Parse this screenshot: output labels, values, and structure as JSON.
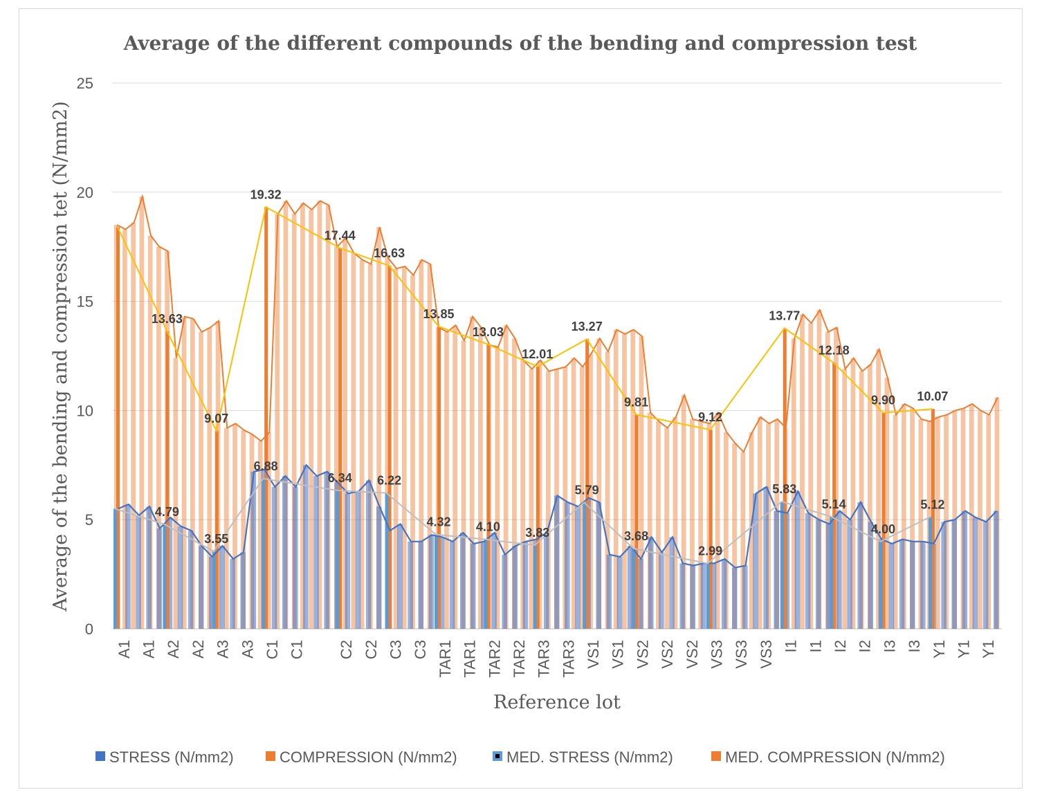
{
  "chart_data": {
    "type": "bar",
    "title": "Average of the different compounds of the bending and compression test",
    "xlabel": "Reference lot",
    "ylabel": "Average of the bending and compression tet (N/mm2)",
    "ylim": [
      0,
      25
    ],
    "yticks": [
      0,
      5,
      10,
      15,
      20,
      25
    ],
    "grid": true,
    "legend_position": "bottom",
    "tick_labels": [
      "A1",
      "A1",
      "A2",
      "A2",
      "A3",
      "A3",
      "C1",
      "C1",
      "",
      "C2",
      "C2",
      "C3",
      "C3",
      "TAR1",
      "TAR1",
      "TAR2",
      "TAR2",
      "TAR3",
      "TAR3",
      "VS1",
      "VS1",
      "VS2",
      "VS2",
      "VS2",
      "VS3",
      "VS3",
      "VS3",
      "I1",
      "I1",
      "I2",
      "I2",
      "I3",
      "I3",
      "Y1",
      "Y1",
      "Y1"
    ],
    "lots": [
      "A1",
      "A2",
      "A3",
      "C1",
      "C2",
      "C3",
      "TAR1",
      "TAR2",
      "TAR3",
      "VS1",
      "VS2",
      "VS3",
      "I1",
      "I2",
      "I3",
      "Y1"
    ],
    "lot_starts": [
      0,
      2,
      4,
      6,
      9,
      11,
      13,
      15,
      17,
      19,
      21,
      24,
      27,
      29,
      31,
      33
    ],
    "series": [
      {
        "name": "STRESS (N/mm2)",
        "color": "#4472c4",
        "values": [
          5.5,
          5.7,
          5.2,
          5.6,
          4.6,
          5.1,
          4.7,
          4.5,
          3.8,
          3.3,
          3.8,
          3.2,
          3.5,
          7.2,
          7.3,
          6.5,
          7.0,
          6.5,
          7.5,
          7.0,
          7.2,
          6.7,
          6.2,
          6.3,
          6.8,
          5.6,
          4.5,
          4.8,
          4.0,
          4.0,
          4.3,
          4.2,
          4.0,
          4.4,
          3.9,
          4.0,
          4.4,
          3.4,
          3.8,
          4.0,
          4.1,
          4.4,
          6.1,
          5.8,
          5.6,
          6.0,
          5.8,
          3.4,
          3.3,
          3.8,
          3.2,
          4.2,
          3.5,
          4.2,
          3.0,
          2.9,
          3.0,
          3.0,
          3.2,
          2.8,
          2.9,
          6.2,
          6.5,
          5.4,
          5.3,
          6.3,
          5.3,
          5.0,
          4.8,
          5.4,
          5.0,
          5.8,
          4.9,
          4.1,
          3.9,
          4.1,
          4.0,
          4.0,
          3.9,
          4.9,
          5.0,
          5.4,
          5.1,
          4.9,
          5.4
        ]
      },
      {
        "name": "COMPRESSION (N/mm2)",
        "color": "#ed7d31",
        "values": [
          18.5,
          18.3,
          18.6,
          19.8,
          18.0,
          17.5,
          17.3,
          12.4,
          14.3,
          14.2,
          13.6,
          13.8,
          14.1,
          9.2,
          9.4,
          9.1,
          8.9,
          8.6,
          9.0,
          19.0,
          19.6,
          19.0,
          19.5,
          19.2,
          19.6,
          19.4,
          17.5,
          17.9,
          17.2,
          16.9,
          16.7,
          18.4,
          17.0,
          16.5,
          16.6,
          16.2,
          16.9,
          16.7,
          13.8,
          13.6,
          13.9,
          13.2,
          14.3,
          13.8,
          13.0,
          12.9,
          13.9,
          13.3,
          12.3,
          11.9,
          12.3,
          11.8,
          11.9,
          12.0,
          12.4,
          12.0,
          12.6,
          13.3,
          12.7,
          13.7,
          13.5,
          13.7,
          13.4,
          9.9,
          9.5,
          9.2,
          9.7,
          10.7,
          9.6,
          9.5,
          9.4,
          9.9,
          9.0,
          8.5,
          8.1,
          9.0,
          9.7,
          9.4,
          9.6,
          9.2,
          13.3,
          14.4,
          14.0,
          14.6,
          13.6,
          13.8,
          11.9,
          12.4,
          11.8,
          12.1,
          12.8,
          11.5,
          9.8,
          10.3,
          10.1,
          9.6,
          9.5,
          9.7,
          9.8,
          10.0,
          10.1,
          10.3,
          10.0,
          9.8,
          10.6
        ]
      },
      {
        "name": "MED. STRESS (N/mm2)",
        "color": "#5b9bd5",
        "values": [
          5.5,
          4.79,
          3.55,
          6.88,
          6.34,
          6.22,
          4.32,
          4.1,
          3.83,
          5.79,
          3.68,
          2.99,
          5.83,
          5.14,
          4.0,
          5.12
        ],
        "data_labels": [
          "",
          "4.79",
          "3.55",
          "6.88",
          "6.34",
          "6.22",
          "4.32",
          "4.10",
          "3.83",
          "5.79",
          "3.68",
          "2.99",
          "5.83",
          "5.14",
          "4.00",
          "5.12"
        ]
      },
      {
        "name": "MED. COMPRESSION (N/mm2)",
        "color": "#ed7d31",
        "values": [
          18.4,
          13.63,
          9.07,
          19.32,
          17.44,
          16.63,
          13.85,
          13.03,
          12.01,
          13.27,
          9.81,
          9.12,
          13.77,
          12.18,
          9.9,
          10.07
        ],
        "data_labels": [
          "",
          "13.63",
          "9.07",
          "19.32",
          "17.44",
          "16.63",
          "13.85",
          "13.03",
          "12.01",
          "13.27",
          "9.81",
          "9.12",
          "13.77",
          "12.18",
          "9.90",
          "10.07"
        ]
      }
    ],
    "trendlines": [
      {
        "name": "MED. COMPRESSION trend",
        "color": "#ffc000"
      },
      {
        "name": "MED. STRESS trend",
        "color": "#bfbfbf"
      }
    ]
  }
}
